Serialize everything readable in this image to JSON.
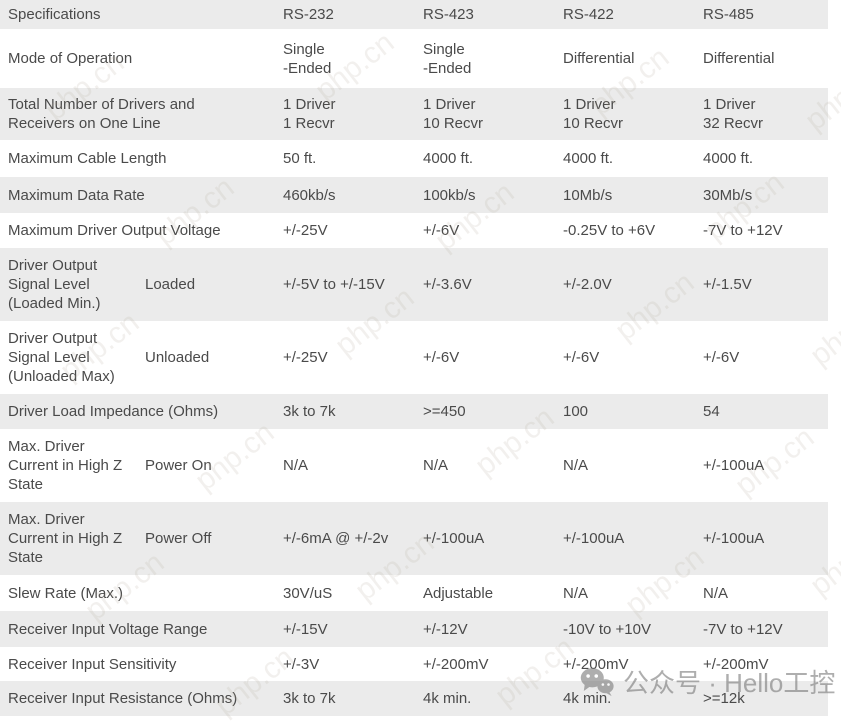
{
  "table": {
    "header": {
      "spec": "Specifications",
      "cols": [
        "RS-232",
        "RS-423",
        "RS-422",
        "RS-485"
      ]
    },
    "rows": [
      {
        "spec": "Mode of Operation",
        "sub": "",
        "values": [
          "Single\n-Ended",
          "Single\n-Ended",
          "Differential",
          "Differential"
        ]
      },
      {
        "spec": "Total Number of Drivers and\nReceivers on One Line",
        "sub": "",
        "values": [
          "1 Driver\n1 Recvr",
          "1 Driver\n10 Recvr",
          "1 Driver\n10 Recvr",
          "1 Driver\n32 Recvr"
        ]
      },
      {
        "spec": "Maximum Cable Length",
        "sub": "",
        "values": [
          "50 ft.",
          "4000 ft.",
          "4000 ft.",
          "4000 ft."
        ]
      },
      {
        "spec": "Maximum Data Rate",
        "sub": "",
        "values": [
          "460kb/s",
          "100kb/s",
          "10Mb/s",
          "30Mb/s"
        ]
      },
      {
        "spec": "Maximum Driver Output Voltage",
        "sub": "",
        "values": [
          "+/-25V",
          "+/-6V",
          "-0.25V to +6V",
          "-7V to +12V"
        ]
      },
      {
        "spec": "Driver Output\nSignal Level\n(Loaded Min.)",
        "sub": "Loaded",
        "values": [
          "+/-5V to +/-15V",
          "+/-3.6V",
          "+/-2.0V",
          "+/-1.5V"
        ]
      },
      {
        "spec": "Driver Output\nSignal Level\n(Unloaded Max)",
        "sub": "Unloaded",
        "values": [
          "+/-25V",
          "+/-6V",
          "+/-6V",
          "+/-6V"
        ]
      },
      {
        "spec": "Driver Load Impedance (Ohms)",
        "sub": "",
        "values": [
          "3k to 7k",
          ">=450",
          "100",
          "54"
        ]
      },
      {
        "spec": "Max. Driver\nCurrent in High Z\nState",
        "sub": "Power On",
        "values": [
          "N/A",
          "N/A",
          "N/A",
          "+/-100uA"
        ]
      },
      {
        "spec": "Max. Driver\nCurrent in High Z\nState",
        "sub": "Power Off",
        "values": [
          "+/-6mA @ +/-2v",
          "+/-100uA",
          "+/-100uA",
          "+/-100uA"
        ]
      },
      {
        "spec": "Slew Rate (Max.)",
        "sub": "",
        "values": [
          "30V/uS",
          "Adjustable",
          "N/A",
          "N/A"
        ]
      },
      {
        "spec": "Receiver Input Voltage Range",
        "sub": "",
        "values": [
          "+/-15V",
          "+/-12V",
          "-10V to +10V",
          "-7V to +12V"
        ]
      },
      {
        "spec": "Receiver Input Sensitivity",
        "sub": "",
        "values": [
          "+/-3V",
          "+/-200mV",
          "+/-200mV",
          "+/-200mV"
        ]
      },
      {
        "spec": "Receiver Input Resistance (Ohms)",
        "sub": "",
        "values": [
          "3k to 7k",
          "4k min.",
          "4k min.",
          ">=12k"
        ]
      }
    ]
  },
  "colors": {
    "row_shade": "#ebebeb",
    "text": "#4a4a4a",
    "tile_watermark": "#b3a998",
    "badge_watermark": "#7d7d7d"
  },
  "watermark": {
    "tile_text": "php.cn",
    "badge_icon": "wechat-icon",
    "badge_text": "公众号 · Hello工控"
  }
}
